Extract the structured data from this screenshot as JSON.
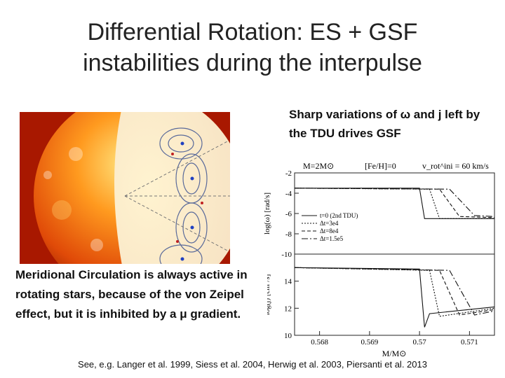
{
  "slide": {
    "title": "Differential Rotation: ES  + GSF instabilities during the interpulse",
    "right_note": "Sharp variations of ω and j left by the TDU drives GSF",
    "left_note": "Meridional Circulation is always active in rotating stars, because of the von Zeipel effect, but it is inhibited by a μ gradient.",
    "references": "See, e.g. Langer et al. 1999, Siess et al. 2004, Herwig et al. 2003, Piersanti et al. 2013"
  },
  "chart_data": [
    {
      "type": "line",
      "header": {
        "mass": "M=2M⊙",
        "feh": "[Fe/H]=0",
        "vrot": "v_rot^ini = 60  km/s"
      },
      "ylabel": "log(ω) [rad/s]",
      "xlim": [
        0.5675,
        0.5715
      ],
      "ylim": [
        -10,
        -2
      ],
      "yticks": [
        "-10",
        "-8",
        "-6",
        "-4",
        "-2"
      ],
      "legend": [
        "t=0 (2nd TDU)",
        "Δt=3e4",
        "Δt=8e4",
        "Δt=1.5e5"
      ],
      "legend_position": "middle-left",
      "series": [
        {
          "name": "t=0 (2nd TDU)",
          "x": [
            0.5675,
            0.57,
            0.5701,
            0.5715
          ],
          "y": [
            -3.5,
            -3.5,
            -6.5,
            -6.5
          ]
        },
        {
          "name": "Δt=3e4",
          "x": [
            0.5675,
            0.5702,
            0.5704,
            0.5715
          ],
          "y": [
            -3.5,
            -3.6,
            -6.5,
            -6.5
          ]
        },
        {
          "name": "Δt=8e4",
          "x": [
            0.5675,
            0.5704,
            0.5708,
            0.5715
          ],
          "y": [
            -3.5,
            -3.6,
            -6.3,
            -6.4
          ]
        },
        {
          "name": "Δt=1.5e5",
          "x": [
            0.5675,
            0.5706,
            0.5711,
            0.5715
          ],
          "y": [
            -3.5,
            -3.6,
            -6.2,
            -6.3
          ]
        }
      ]
    },
    {
      "type": "line",
      "ylabel": "log(j) [cm²/s]",
      "xlabel": "M/M⊙",
      "xlim": [
        0.5675,
        0.5715
      ],
      "ylim": [
        10,
        16
      ],
      "xticks": [
        "0.568",
        "0.569",
        "0.57",
        "0.571"
      ],
      "yticks": [
        "10",
        "12",
        "14"
      ],
      "series": [
        {
          "name": "t=0 (2nd TDU)",
          "x": [
            0.5675,
            0.57,
            0.5701,
            0.5702,
            0.5715
          ],
          "y": [
            15.0,
            14.9,
            10.6,
            11.6,
            12.1
          ]
        },
        {
          "name": "Δt=3e4",
          "x": [
            0.5675,
            0.5702,
            0.5704,
            0.5715
          ],
          "y": [
            15.0,
            14.8,
            11.4,
            12.0
          ]
        },
        {
          "name": "Δt=8e4",
          "x": [
            0.5675,
            0.5704,
            0.5708,
            0.5715
          ],
          "y": [
            15.0,
            14.8,
            11.5,
            11.9
          ]
        },
        {
          "name": "Δt=1.5e5",
          "x": [
            0.5675,
            0.5706,
            0.5711,
            0.5715
          ],
          "y": [
            15.0,
            14.8,
            11.5,
            11.8
          ]
        }
      ]
    }
  ],
  "colors": {
    "sun_core": "#fff0b0",
    "sun_mid": "#ff8a1a",
    "sun_edge": "#c02000",
    "background": "#ffffff"
  }
}
